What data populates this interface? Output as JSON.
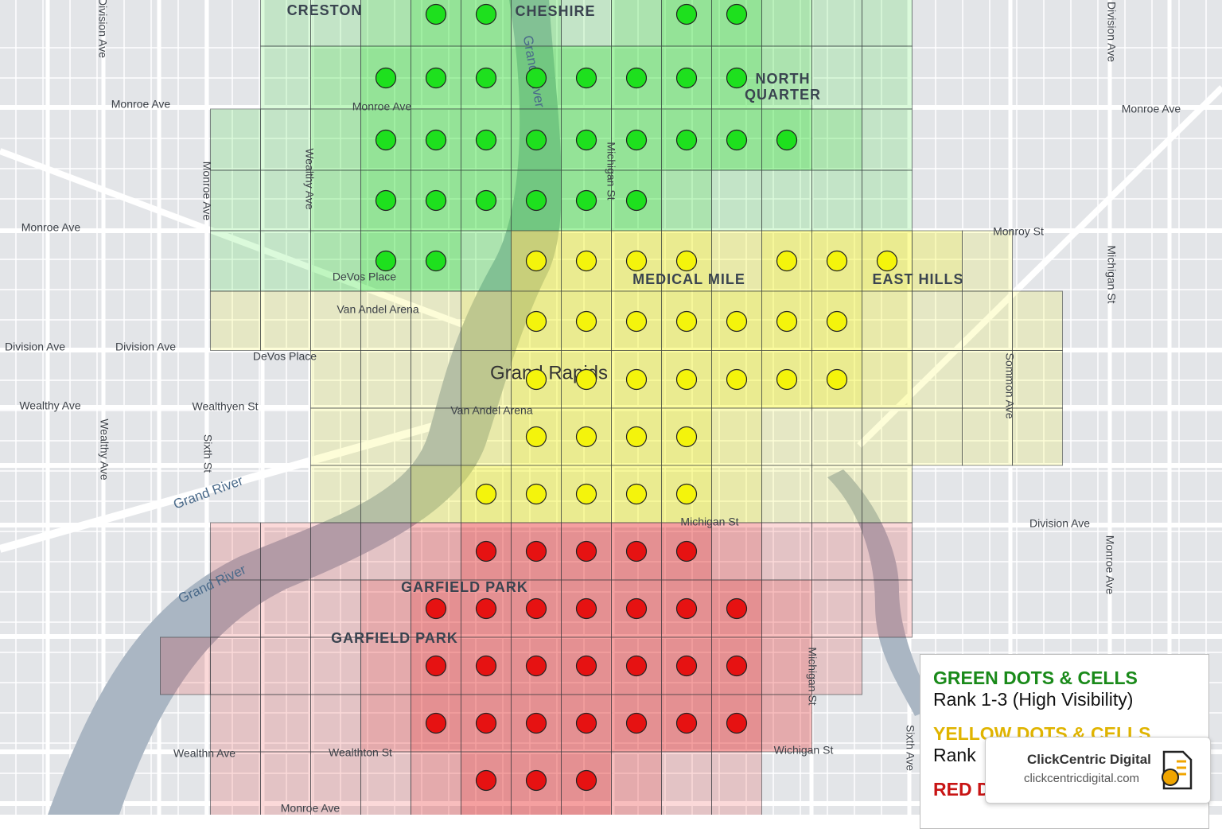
{
  "map": {
    "labels": [
      "CRESTON",
      "CHESHIRE",
      "NORTH",
      "QUARTER",
      "MEDICAL MILE",
      "EAST HILLS",
      "GARFIELD PARK",
      "GARFIELD PARK",
      "Grand Rapids",
      "Monroe Ave",
      "Monroe Ave",
      "Monroe Ave",
      "Monroe Ave",
      "Monroe Ave",
      "Monroe Ave",
      "Wealthy Ave",
      "Division Ave",
      "Division Ave",
      "Division Ave",
      "DeVos Place",
      "Van Andel Arena",
      "DeVos Place",
      "Van Andel Arena",
      "Wealthy Ave",
      "Wealthyen St",
      "Sixth St",
      "Wealthy Ave",
      "Grand River",
      "Grand River",
      "Michigan St",
      "Michigan St",
      "Monroy St",
      "Wealthn Ave",
      "Wealthton St",
      "Wichigan St",
      "Sixth Ave",
      "Monroe Ave",
      "Division Ave",
      "Division Ave",
      "Grand River",
      "Michigan St",
      "Michigan St",
      "Sommon Ave"
    ],
    "colors": {
      "green": "#1ee01e",
      "yellow": "#f4f40c",
      "red": "#e61212"
    },
    "dots": [
      [
        null,
        "green",
        "green",
        null,
        null,
        null,
        "green",
        "green",
        null,
        null,
        null
      ],
      [
        "green",
        "green",
        "green",
        "green",
        "green",
        "green",
        "green",
        "green",
        null,
        null,
        null
      ],
      [
        "green",
        "green",
        "green",
        "green",
        "green",
        "green",
        "green",
        "green",
        "green",
        null,
        null
      ],
      [
        "green",
        "green",
        "green",
        "green",
        "green",
        "green",
        null,
        null,
        null,
        null,
        null
      ],
      [
        "green",
        "green",
        null,
        "yellow",
        "yellow",
        "yellow",
        "yellow",
        null,
        "yellow",
        "yellow",
        "yellow"
      ],
      [
        null,
        null,
        null,
        "yellow",
        "yellow",
        "yellow",
        "yellow",
        "yellow",
        "yellow",
        "yellow",
        null
      ],
      [
        null,
        null,
        null,
        "yellow",
        "yellow",
        "yellow",
        "yellow",
        "yellow",
        "yellow",
        "yellow",
        null
      ],
      [
        null,
        null,
        null,
        "yellow",
        "yellow",
        "yellow",
        "yellow",
        null,
        null,
        null,
        null
      ],
      [
        null,
        null,
        "yellow",
        "yellow",
        "yellow",
        "yellow",
        "yellow",
        null,
        null,
        null,
        null
      ],
      [
        null,
        null,
        "red",
        "red",
        "red",
        "red",
        "red",
        null,
        null,
        null,
        null
      ],
      [
        null,
        "red",
        "red",
        "red",
        "red",
        "red",
        "red",
        "red",
        null,
        null,
        null
      ],
      [
        null,
        "red",
        "red",
        "red",
        "red",
        "red",
        "red",
        "red",
        null,
        null,
        null
      ],
      [
        null,
        "red",
        "red",
        "red",
        "red",
        "red",
        "red",
        "red",
        null,
        null,
        null
      ],
      [
        null,
        null,
        "red",
        "red",
        "red",
        null,
        null,
        null,
        null,
        null,
        null
      ]
    ]
  },
  "legend": {
    "items": [
      {
        "title": "GREEN DOTS & CELLS",
        "text": "Rank 1-3 (High Visibility)",
        "color": "#1a8a1a"
      },
      {
        "title": "YELLOW DOTS & CELLS",
        "text": "Rank",
        "color": "#e0b400"
      },
      {
        "title": "RED DOTS & CELLS",
        "color": "#c81414"
      }
    ]
  },
  "brand": {
    "name": "ClickCentric Digital",
    "url": "clickcentricdigital.com"
  }
}
